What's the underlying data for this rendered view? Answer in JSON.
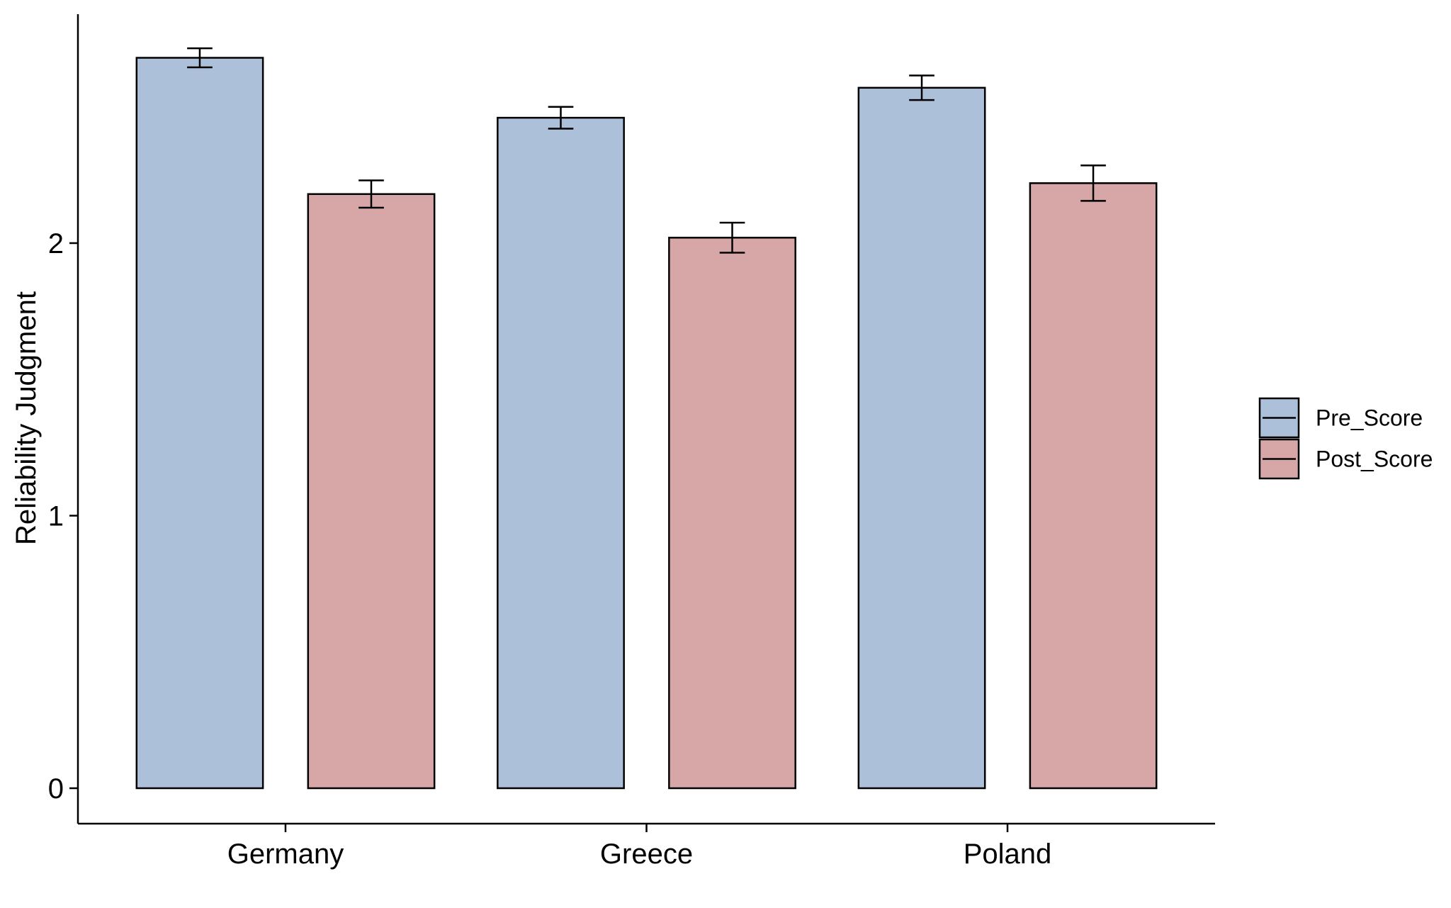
{
  "chart_data": {
    "type": "bar",
    "categories": [
      "Germany",
      "Greece",
      "Poland"
    ],
    "series": [
      {
        "name": "Pre_Score",
        "color": "#adc0d9",
        "values": [
          2.68,
          2.46,
          2.57
        ],
        "error": [
          0.035,
          0.04,
          0.045
        ]
      },
      {
        "name": "Post_Score",
        "color": "#d7a7a7",
        "values": [
          2.18,
          2.02,
          2.22
        ],
        "error": [
          0.05,
          0.055,
          0.065
        ]
      }
    ],
    "xlabel": "",
    "ylabel": "Reliability Judgment",
    "yticks": [
      0,
      1,
      2
    ],
    "ylim": [
      -0.13,
      2.84
    ],
    "grid": false,
    "legend_position": "right"
  }
}
